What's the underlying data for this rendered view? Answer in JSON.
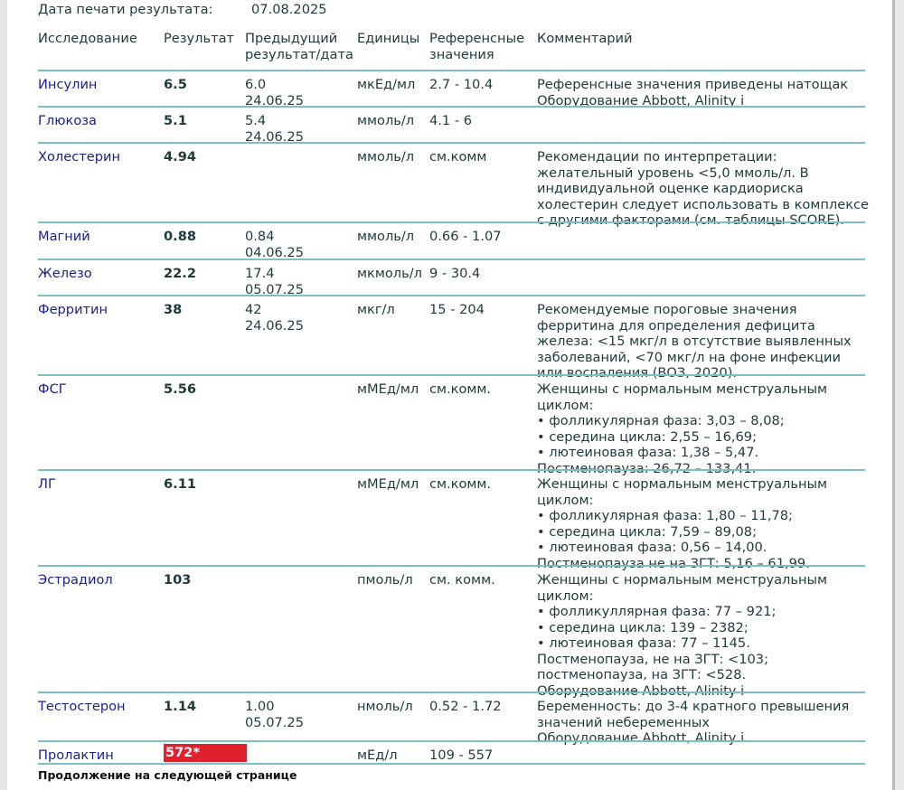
{
  "print_date": {
    "label": "Дата печати результата:",
    "value": "07.08.2025"
  },
  "columns": [
    "Исследование",
    "Результат",
    "Предыдущий\nрезультат/дата",
    "Единицы",
    "Референсные\nзначения",
    "Комментарий"
  ],
  "rows": [
    {
      "name": "Инсулин",
      "result": "6.5",
      "prev": "6.0\n24.06.25",
      "units": "мкЕд/мл",
      "ref": "2.7 - 10.4",
      "comment": "Референсные значения приведены натощак\nОборудование Abbott, Alinity i"
    },
    {
      "name": "Глюкоза",
      "result": "5.1",
      "prev": "5.4\n24.06.25",
      "units": "ммоль/л",
      "ref": "4.1 - 6",
      "comment": ""
    },
    {
      "name": "Холестерин",
      "result": "4.94",
      "prev": "",
      "units": "ммоль/л",
      "ref": "см.комм",
      "comment": "Рекомендации по интерпретации:\nжелательный уровень <5,0 ммоль/л. В\nиндивидуальной оценке кардиориска\nхолестерин следует использовать в комплексе\nс другими факторами (см. таблицы SCORE)."
    },
    {
      "name": "Магний",
      "result": "0.88",
      "prev": "0.84\n04.06.25",
      "units": "ммоль/л",
      "ref": "0.66 - 1.07",
      "comment": ""
    },
    {
      "name": "Железо",
      "result": "22.2",
      "prev": "17.4\n05.07.25",
      "units": "мкмоль/л",
      "ref": "9 - 30.4",
      "comment": ""
    },
    {
      "name": "Ферритин",
      "result": "38",
      "prev": "42\n24.06.25",
      "units": "мкг/л",
      "ref": "15 - 204",
      "comment": "Рекомендуемые пороговые значения\nферритина для определения дефицита\nжелеза: <15 мкг/л в отсутствие выявленных\nзаболеваний, <70 мкг/л на фоне инфекции\nили воспаления (ВОЗ, 2020)."
    },
    {
      "name": "ФСГ",
      "result": "5.56",
      "prev": "",
      "units": "мМЕд/мл",
      "ref": "см.комм.",
      "comment": "Женщины с нормальным менструальным\nциклом:\n• фолликулярная фаза: 3,03 – 8,08;\n• середина цикла: 2,55 – 16,69;\n• лютеиновая фаза: 1,38 – 5,47.\nПостменопауза: 26,72 – 133,41."
    },
    {
      "name": "ЛГ",
      "result": "6.11",
      "prev": "",
      "units": "мМЕд/мл",
      "ref": "см.комм.",
      "comment": "Женщины с нормальным менструальным\nциклом:\n• фолликулярная фаза: 1,80 – 11,78;\n• середина цикла: 7,59 – 89,08;\n• лютеиновая фаза: 0,56 – 14,00.\nПостменопауза не на ЗГТ: 5,16 – 61,99."
    },
    {
      "name": "Эстрадиол",
      "result": "103",
      "prev": "",
      "units": "пмоль/л",
      "ref": "см. комм.",
      "comment": "Женщины с нормальным менструальным\nциклом:\n• фолликуллярная фаза: 77 – 921;\n• середина цикла: 139 – 2382;\n• лютеиновая фаза: 77 – 1145.\nПостменопауза, не на ЗГТ: <103;\nпостменопауза, на ЗГТ: <528.\nОборудование Abbott, Alinity i"
    },
    {
      "name": "Тестостерон",
      "result": "1.14",
      "prev": "1.00\n05.07.25",
      "units": "нмоль/л",
      "ref": "0.52 - 1.72",
      "comment": "Беременность: до 3-4 кратного превышения\nзначений небеременных\nОборудование Abbott, Alinity i"
    },
    {
      "name": "Пролактин",
      "result": "572*",
      "flagged": true,
      "prev": "",
      "units": "мЕд/л",
      "ref": "109 - 557",
      "comment": ""
    }
  ],
  "footer": "Продолжение на следующей странице",
  "colors": {
    "name": "#1a1f8f",
    "line": "#7cc0c6",
    "flag": "#e0202a"
  }
}
